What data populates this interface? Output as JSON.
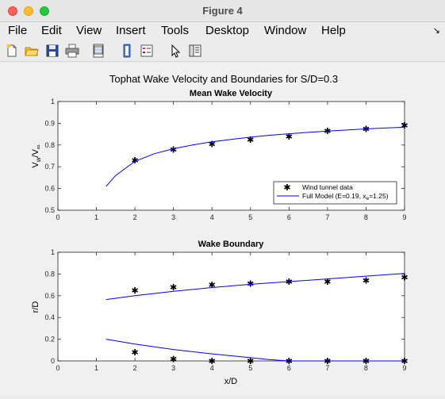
{
  "window": {
    "title": "Figure 4"
  },
  "menu": {
    "items": [
      "File",
      "Edit",
      "View",
      "Insert",
      "Tools",
      "Desktop",
      "Window",
      "Help"
    ],
    "overflow_icon": "arrow-icon"
  },
  "toolbar": {
    "icons": [
      "new-figure-icon",
      "open-file-icon",
      "save-icon",
      "print-icon",
      "print-preview-icon",
      "link-plot-icon",
      "insert-legend-icon",
      "pointer-icon",
      "property-editor-icon"
    ]
  },
  "figure": {
    "suptitle": "Tophat Wake Velocity and Boundaries for S/D=0.3"
  },
  "chart_data": [
    {
      "type": "line",
      "title": "Mean Wake Velocity",
      "xlabel": "",
      "ylabel_main": "V",
      "ylabel_sub1": "w",
      "ylabel_mid": "/V",
      "ylabel_sub2": "∞",
      "xlim": [
        0,
        9
      ],
      "ylim": [
        0.5,
        1
      ],
      "xticks": [
        "0",
        "1",
        "2",
        "3",
        "4",
        "5",
        "6",
        "7",
        "8",
        "9"
      ],
      "yticks": [
        "0.5",
        "0.6",
        "0.7",
        "0.8",
        "0.9",
        "1"
      ],
      "grid": false,
      "legend_placement": "bottom-right",
      "legend": {
        "wind_tunnel": "Wind tunnel data",
        "model_prefix": "Full Model (E=0.19, x",
        "model_sub": "e",
        "model_suffix": "=1.25)"
      },
      "series": [
        {
          "name": "Wind tunnel data",
          "style": "markers",
          "marker": "*",
          "color": "#000000",
          "x": [
            2,
            3,
            4,
            5,
            6,
            7,
            8,
            9
          ],
          "y": [
            0.73,
            0.78,
            0.805,
            0.825,
            0.84,
            0.865,
            0.875,
            0.89
          ]
        },
        {
          "name": "Full Model",
          "style": "line",
          "color": "#0000ff",
          "x": [
            1.25,
            1.5,
            2,
            2.5,
            3,
            3.5,
            4,
            4.5,
            5,
            5.5,
            6,
            6.5,
            7,
            7.5,
            8,
            8.5,
            9
          ],
          "y": [
            0.61,
            0.66,
            0.725,
            0.76,
            0.783,
            0.8,
            0.815,
            0.826,
            0.836,
            0.845,
            0.852,
            0.858,
            0.864,
            0.869,
            0.874,
            0.878,
            0.882
          ]
        }
      ]
    },
    {
      "type": "line",
      "title": "Wake Boundary",
      "xlabel": "x/D",
      "ylabel": "r/D",
      "xlim": [
        0,
        9
      ],
      "ylim": [
        0,
        1
      ],
      "xticks": [
        "0",
        "1",
        "2",
        "3",
        "4",
        "5",
        "6",
        "7",
        "8",
        "9"
      ],
      "yticks": [
        "0",
        "0.2",
        "0.4",
        "0.6",
        "0.8",
        "1"
      ],
      "grid": false,
      "series": [
        {
          "name": "Wind tunnel data upper",
          "style": "markers",
          "marker": "*",
          "color": "#000000",
          "x": [
            2,
            3,
            4,
            5,
            6,
            7,
            8,
            9
          ],
          "y": [
            0.65,
            0.68,
            0.7,
            0.71,
            0.73,
            0.73,
            0.74,
            0.77
          ]
        },
        {
          "name": "Wind tunnel data lower",
          "style": "markers",
          "marker": "*",
          "color": "#000000",
          "x": [
            2,
            3,
            4,
            5,
            6,
            7,
            8,
            9
          ],
          "y": [
            0.08,
            0.02,
            0,
            0,
            0,
            0,
            0,
            0
          ]
        },
        {
          "name": "Full Model upper",
          "style": "line",
          "color": "#0000ff",
          "x": [
            1.25,
            2,
            3,
            4,
            5,
            6,
            7,
            8,
            9
          ],
          "y": [
            0.565,
            0.6,
            0.64,
            0.675,
            0.705,
            0.73,
            0.755,
            0.78,
            0.805
          ]
        },
        {
          "name": "Full Model lower",
          "style": "line",
          "color": "#0000ff",
          "x": [
            1.25,
            2,
            3,
            4,
            5,
            5.5,
            6,
            7,
            8,
            9
          ],
          "y": [
            0.2,
            0.155,
            0.105,
            0.065,
            0.03,
            0.012,
            0,
            0,
            0,
            0
          ]
        }
      ]
    }
  ]
}
